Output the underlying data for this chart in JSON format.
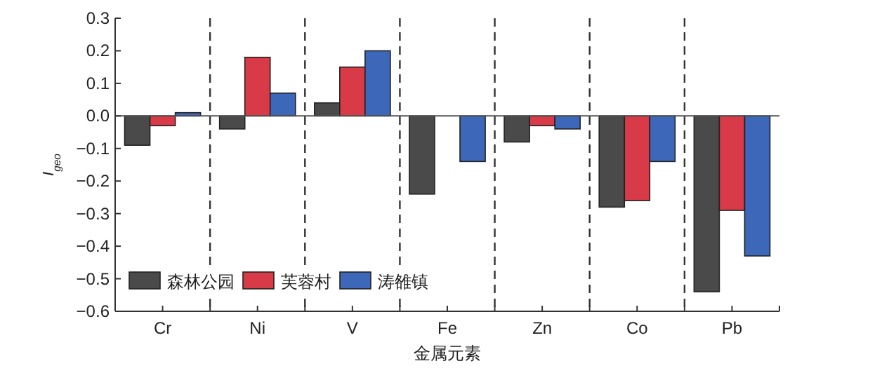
{
  "chart_data": {
    "type": "bar",
    "xlabel": "金属元素",
    "ylabel": "I$_{geo}$",
    "categories": [
      "Cr",
      "Ni",
      "V",
      "Fe",
      "Zn",
      "Co",
      "Pb"
    ],
    "series": [
      {
        "name": "森林公园",
        "color": "#4a4a4a",
        "values": [
          -0.09,
          -0.04,
          0.04,
          -0.24,
          -0.08,
          -0.28,
          -0.54
        ]
      },
      {
        "name": "芙蓉村",
        "color": "#d93a48",
        "values": [
          -0.03,
          0.18,
          0.15,
          null,
          -0.03,
          -0.26,
          -0.29
        ]
      },
      {
        "name": "涛雒镇",
        "color": "#3d67b8",
        "values": [
          0.01,
          0.07,
          0.2,
          -0.14,
          -0.04,
          -0.14,
          -0.43
        ]
      }
    ],
    "ylim": [
      -0.6,
      0.3
    ],
    "yticks": [
      {
        "value": -0.6,
        "label": "−0.6"
      },
      {
        "value": -0.5,
        "label": "−0.5"
      },
      {
        "value": -0.4,
        "label": "−0.4"
      },
      {
        "value": -0.3,
        "label": "−0.3"
      },
      {
        "value": -0.2,
        "label": "−0.2"
      },
      {
        "value": -0.1,
        "label": "−0.1"
      },
      {
        "value": 0,
        "label": "0.0"
      },
      {
        "value": 0.1,
        "label": "0.1"
      },
      {
        "value": 0.2,
        "label": "0.2"
      },
      {
        "value": 0.3,
        "label": "0.3"
      }
    ],
    "legend": "bottom left",
    "grid": false
  }
}
